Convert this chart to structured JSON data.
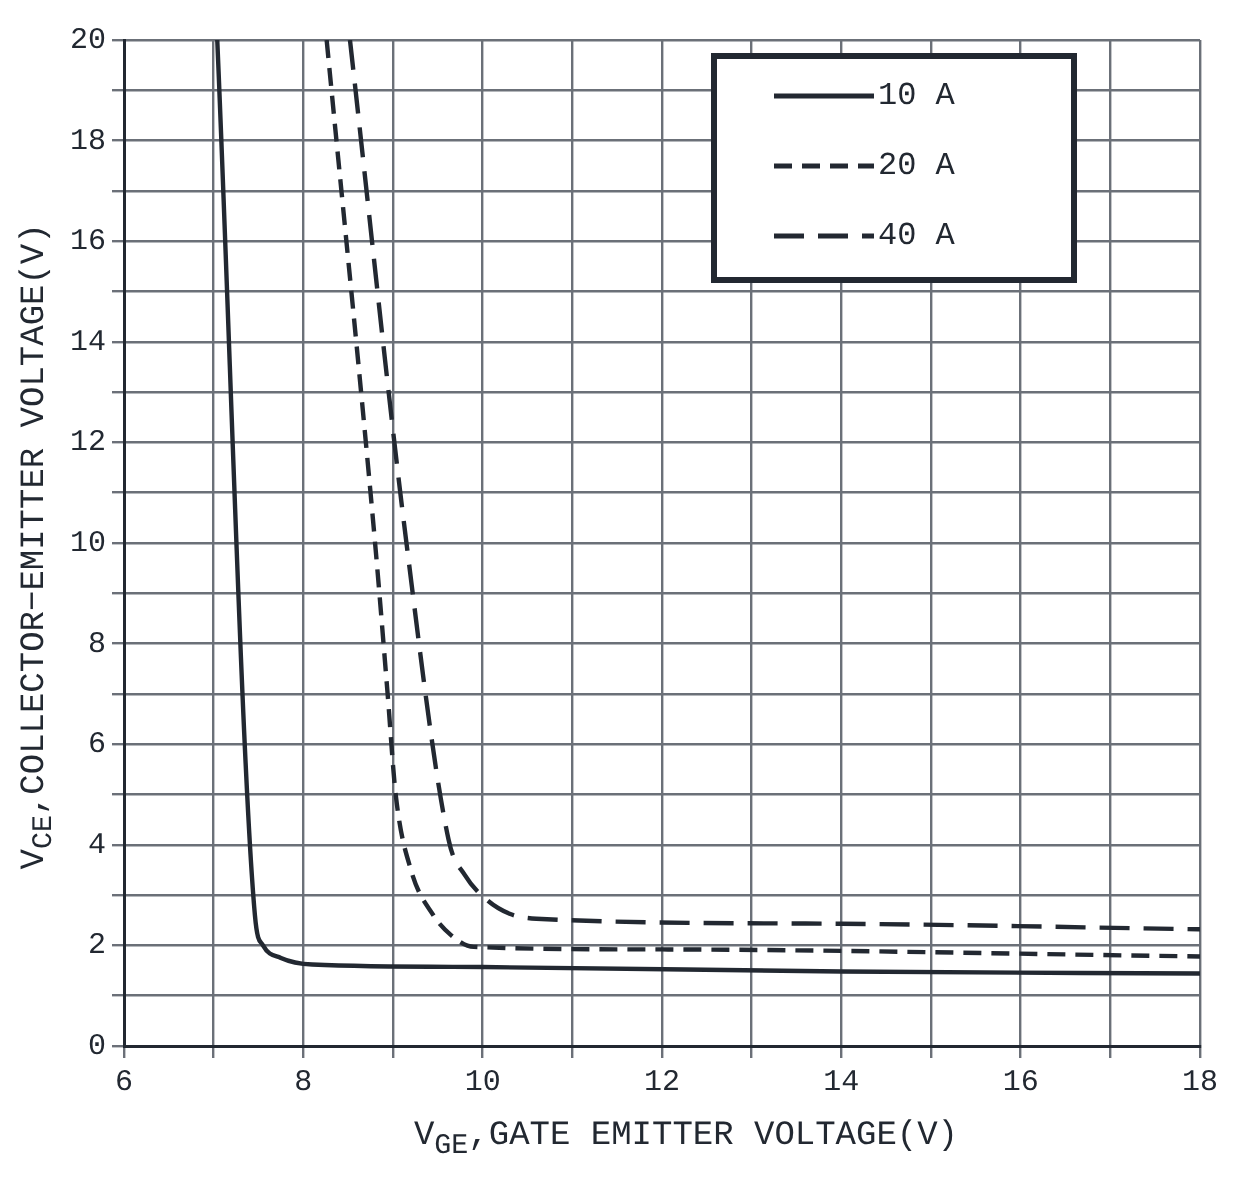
{
  "chart_data": {
    "type": "line",
    "xlabel": "V$_{GE}$,GATE EMITTER VOLTAGE(V)",
    "ylabel": "V$_{CE}$,COLLECTOR−EMITTER VOLTAGE(V)",
    "xlim": [
      6,
      18
    ],
    "xticks": [
      6,
      {
        "value": 7,
        "label": null
      },
      8,
      {
        "value": 9,
        "label": null
      },
      10,
      {
        "value": 11,
        "label": null
      },
      12,
      {
        "value": 13,
        "label": null
      },
      14,
      {
        "value": 15,
        "label": null
      },
      16,
      {
        "value": 17,
        "label": null
      },
      18
    ],
    "ylim": [
      0,
      20
    ],
    "yticks": [
      0,
      {
        "value": 1,
        "label": null
      },
      2,
      {
        "value": 3,
        "label": null
      },
      4,
      {
        "value": 5,
        "label": null
      },
      6,
      {
        "value": 7,
        "label": null
      },
      8,
      {
        "value": 9,
        "label": null
      },
      10,
      {
        "value": 11,
        "label": null
      },
      12,
      {
        "value": 13,
        "label": null
      },
      14,
      {
        "value": 15,
        "label": null
      },
      16,
      {
        "value": 17,
        "label": null
      },
      18,
      {
        "value": 19,
        "label": null
      },
      20
    ],
    "grid": true,
    "legend": "top right",
    "marker": "none",
    "series": [
      {
        "name": "10 A",
        "color": "#222831",
        "line_style": "solid",
        "x": [
          7.04,
          7.46,
          7.55,
          7.75,
          8.1,
          10,
          14,
          18
        ],
        "values": [
          20,
          2.6,
          2.0,
          1.75,
          1.62,
          1.57,
          1.48,
          1.44
        ]
      },
      {
        "name": "20 A",
        "color": "#222831",
        "line_style": "dashed",
        "x": [
          8.26,
          8.8,
          8.94,
          9.03,
          9.2,
          9.45,
          9.65,
          9.9,
          12,
          18
        ],
        "values": [
          20,
          10,
          7,
          5,
          3.5,
          2.6,
          2.2,
          1.97,
          1.92,
          1.78
        ]
      },
      {
        "name": "40 A",
        "color": "#222831",
        "line_style": "dashed",
        "x": [
          8.52,
          9.15,
          9.62,
          9.8,
          10.05,
          10.3,
          10.6,
          14,
          18
        ],
        "values": [
          20,
          10,
          4.1,
          3.4,
          2.9,
          2.63,
          2.53,
          2.43,
          2.32
        ]
      }
    ]
  }
}
